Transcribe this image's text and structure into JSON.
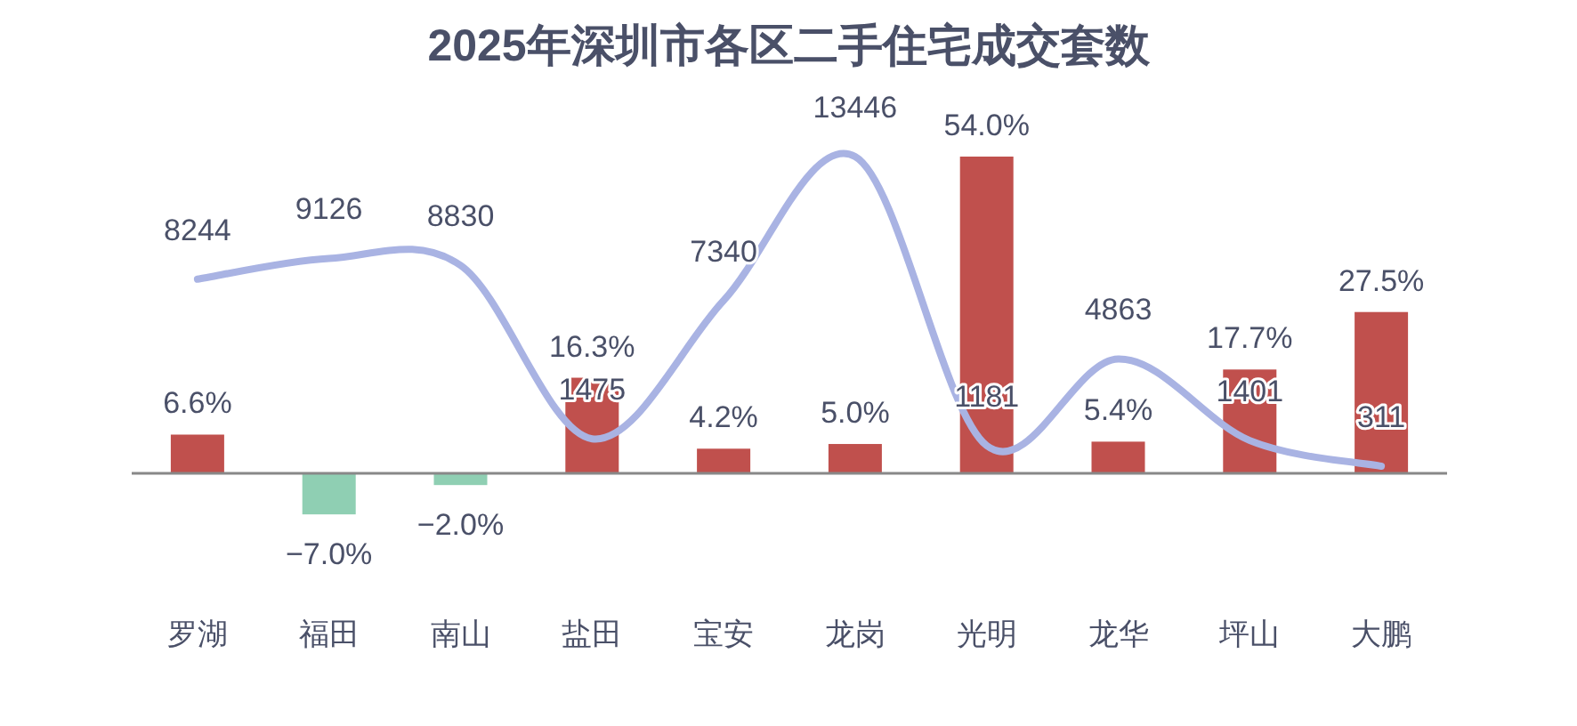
{
  "chart_data": {
    "type": "bar",
    "title": "2025年深圳市各区二手住宅成交套数",
    "categories": [
      "罗湖",
      "福田",
      "南山",
      "盐田",
      "宝安",
      "龙岗",
      "光明",
      "龙华",
      "坪山",
      "大鹏"
    ],
    "series": [
      {
        "colors": [
          "#c0504d",
          "#8fcfb3",
          "#8fcfb3",
          "#c0504d",
          "#c0504d",
          "#c0504d",
          "#c0504d",
          "#c0504d",
          "#c0504d",
          "#c0504d"
        ],
        "values": [
          6.6,
          -7.0,
          -2.0,
          16.3,
          4.2,
          5.0,
          54.0,
          5.4,
          17.7,
          27.5
        ],
        "value_labels": [
          "6.6%",
          "−7.0%",
          "−2.0%",
          "16.3%",
          "4.2%",
          "5.0%",
          "54.0%",
          "5.4%",
          "17.7%",
          "27.5%"
        ]
      },
      {
        "type": "line",
        "axis": "y2",
        "color": "#a9b3e3",
        "values": [
          8244,
          9126,
          8830,
          1475,
          7340,
          13446,
          1181,
          4863,
          1401,
          311
        ],
        "value_labels": [
          "8244",
          "9126",
          "8830",
          "1475",
          "7340",
          "13446",
          "1181",
          "4863",
          "1401",
          "311"
        ]
      }
    ]
  }
}
